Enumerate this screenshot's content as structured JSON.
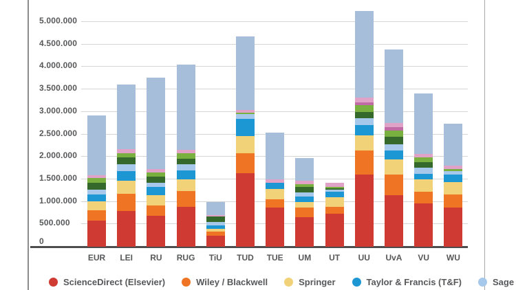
{
  "frame": {
    "background": "#ffffff",
    "left_border_color": "#8c8c8c",
    "right_border_color": "#a8a8a8"
  },
  "axis": {
    "label_color": "#57585a",
    "gridline_color": "#d4d4d4",
    "baseline_color": "#4d4d4d"
  },
  "legend": {
    "items": [
      {
        "label": "ScienceDirect (Elsevier)",
        "color": "#cf3a33"
      },
      {
        "label": "Wiley / Blackwell",
        "color": "#ef7524"
      },
      {
        "label": "Springer",
        "color": "#f2d279"
      },
      {
        "label": "Taylor & Francis (T&F)",
        "color": "#1d97d4"
      },
      {
        "label": "Sage",
        "color": "#a6c8ea"
      }
    ]
  },
  "chart_data": {
    "type": "bar",
    "stacked": true,
    "grid": true,
    "legend_position": "bottom",
    "xlabel": "",
    "ylabel": "",
    "ylim": [
      0,
      5300000
    ],
    "y_tick_step": 500000,
    "y_tick_labels": [
      "0",
      "500.000",
      "1.000.000",
      "1.500.000",
      "2.000.000",
      "2.500.000",
      "3.000.000",
      "3.500.000",
      "4.000.000",
      "4.500.000",
      "5.000.000"
    ],
    "categories": [
      "EUR",
      "LEI",
      "RU",
      "RUG",
      "TiU",
      "TUD",
      "TUE",
      "UM",
      "UT",
      "UU",
      "UvA",
      "VU",
      "WU"
    ],
    "series": [
      {
        "name": "ScienceDirect (Elsevier)",
        "color": "#cf3a33",
        "values": [
          580000,
          790000,
          690000,
          890000,
          245000,
          1630000,
          865000,
          660000,
          740000,
          1600000,
          1145000,
          965000,
          875000
        ]
      },
      {
        "name": "Wiley / Blackwell",
        "color": "#ef7524",
        "values": [
          230000,
          380000,
          230000,
          355000,
          100000,
          445000,
          195000,
          205000,
          155000,
          535000,
          460000,
          265000,
          295000
        ]
      },
      {
        "name": "Springer",
        "color": "#f2d279",
        "values": [
          200000,
          305000,
          230000,
          255000,
          60000,
          390000,
          225000,
          125000,
          200000,
          345000,
          330000,
          270000,
          265000
        ]
      },
      {
        "name": "Taylor & Francis (T&F)",
        "color": "#1d97d4",
        "values": [
          155000,
          200000,
          180000,
          205000,
          75000,
          380000,
          140000,
          125000,
          125000,
          225000,
          205000,
          125000,
          170000
        ]
      },
      {
        "name": "Sage",
        "color": "#a6c8ea",
        "values": [
          105000,
          155000,
          100000,
          125000,
          75000,
          110000,
          0,
          100000,
          50000,
          155000,
          140000,
          140000,
          75000
        ]
      },
      {
        "name": "unlabeled-dark-green",
        "color": "#35682b",
        "values": [
          155000,
          155000,
          125000,
          125000,
          120000,
          0,
          0,
          110000,
          25000,
          135000,
          170000,
          110000,
          0
        ]
      },
      {
        "name": "unlabeled-light-green",
        "color": "#7ab03f",
        "values": [
          105000,
          90000,
          100000,
          125000,
          0,
          30000,
          0,
          65000,
          35000,
          155000,
          135000,
          110000,
          50000
        ]
      },
      {
        "name": "unlabeled-plum",
        "color": "#c06ba6",
        "values": [
          0,
          0,
          0,
          0,
          0,
          0,
          0,
          0,
          0,
          70000,
          70000,
          0,
          0
        ]
      },
      {
        "name": "unlabeled-pink",
        "color": "#e0a2c6",
        "values": [
          60000,
          90000,
          75000,
          75000,
          30000,
          60000,
          75000,
          75000,
          90000,
          100000,
          90000,
          80000,
          75000
        ]
      },
      {
        "name": "unlabeled-pale-blue",
        "color": "#a6bed9",
        "values": [
          1340000,
          1450000,
          2030000,
          1900000,
          290000,
          1640000,
          1030000,
          510000,
          0,
          1920000,
          1640000,
          1340000,
          930000
        ]
      }
    ]
  }
}
